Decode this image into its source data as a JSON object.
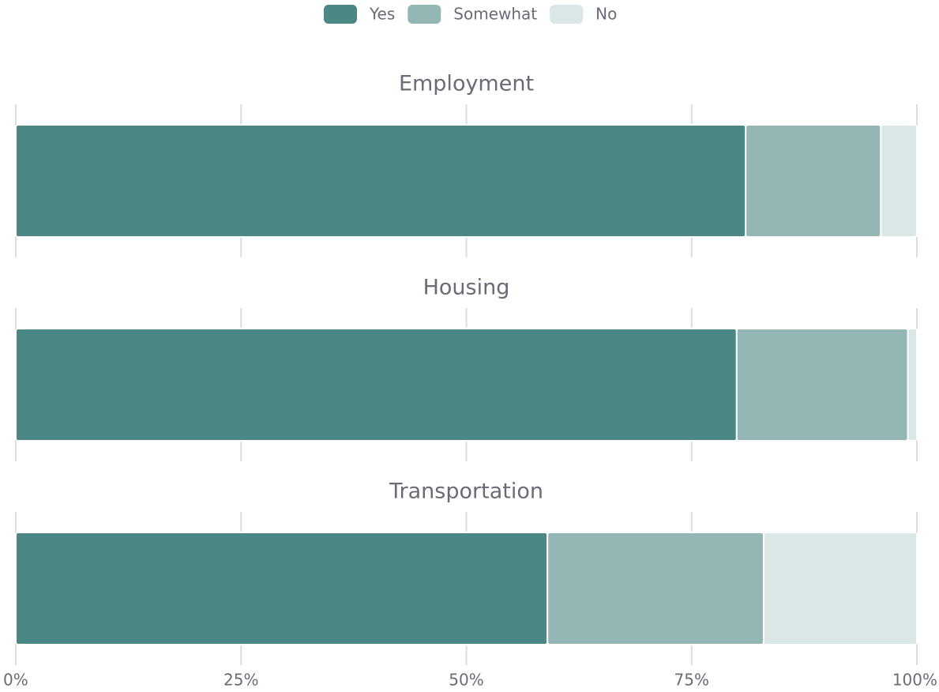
{
  "chart_data": {
    "type": "bar",
    "orientation": "horizontal",
    "stacked": true,
    "categories": [
      "Employment",
      "Housing",
      "Transportation"
    ],
    "series": [
      {
        "name": "Yes",
        "color": "#4a8785",
        "values": [
          81,
          80,
          59
        ]
      },
      {
        "name": "Somewhat",
        "color": "#93b7b5",
        "values": [
          15,
          19,
          24
        ]
      },
      {
        "name": "No",
        "color": "#dbe7e6",
        "values": [
          4,
          1,
          17
        ]
      }
    ],
    "xlim": [
      0,
      100
    ],
    "xticks": [
      {
        "value": 0,
        "label": "0%"
      },
      {
        "value": 25,
        "label": "25%"
      },
      {
        "value": 50,
        "label": "50%"
      },
      {
        "value": 75,
        "label": "75%"
      },
      {
        "value": 100,
        "label": "100%"
      }
    ],
    "grid": true,
    "legend": "top"
  }
}
